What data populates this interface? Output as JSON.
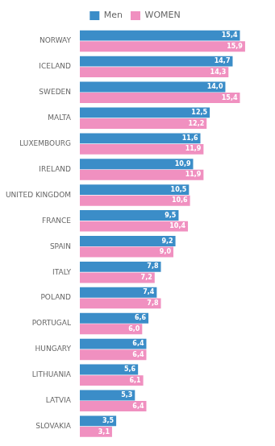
{
  "chart_data": {
    "type": "bar",
    "orientation": "horizontal",
    "categories": [
      "NORWAY",
      "ICELAND",
      "SWEDEN",
      "MALTA",
      "LUXEMBOURG",
      "IRELAND",
      "UNITED KINGDOM",
      "FRANCE",
      "SPAIN",
      "ITALY",
      "POLAND",
      "PORTUGAL",
      "HUNGARY",
      "LITHUANIA",
      "LATVIA",
      "SLOVAKIA"
    ],
    "series": [
      {
        "name": "Men",
        "color": "#3B8DC8",
        "values": [
          15.4,
          14.7,
          14.0,
          12.5,
          11.6,
          10.9,
          10.5,
          9.5,
          9.2,
          7.8,
          7.4,
          6.6,
          6.4,
          5.6,
          5.3,
          3.5
        ],
        "value_labels": [
          "15,4",
          "14,7",
          "14,0",
          "12,5",
          "11,6",
          "10,9",
          "10,5",
          "9,5",
          "9,2",
          "7,8",
          "7,4",
          "6,6",
          "6,4",
          "5,6",
          "5,3",
          "3,5"
        ]
      },
      {
        "name": "WOMEN",
        "color": "#F090C0",
        "values": [
          15.9,
          14.3,
          15.4,
          12.2,
          11.9,
          11.9,
          10.6,
          10.4,
          9.0,
          7.2,
          7.8,
          6.0,
          6.4,
          6.1,
          6.4,
          3.1
        ],
        "value_labels": [
          "15,9",
          "14,3",
          "15,4",
          "12,2",
          "11,9",
          "11,9",
          "10,6",
          "10,4",
          "9,0",
          "7,2",
          "7,8",
          "6,0",
          "6,4",
          "6,1",
          "6,4",
          "3,1"
        ]
      }
    ],
    "xlim": [
      0,
      18
    ],
    "grid": false,
    "legend": "top",
    "data_labels": true,
    "tick_labels": "y"
  }
}
